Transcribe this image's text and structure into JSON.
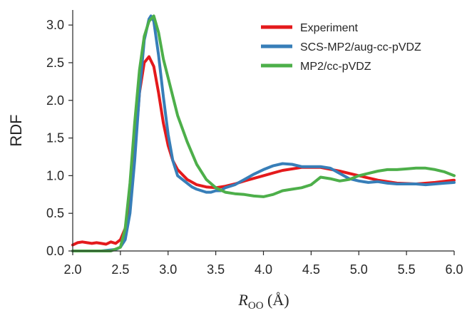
{
  "chart_data": {
    "type": "line",
    "xlabel_main": "R",
    "xlabel_sub": "OO",
    "xlabel_unit": " (Å)",
    "ylabel": "RDF",
    "xlim": [
      2.0,
      6.0
    ],
    "ylim": [
      0.0,
      3.2
    ],
    "xticks": [
      "2.0",
      "2.5",
      "3.0",
      "3.5",
      "4.0",
      "4.5",
      "5.0",
      "5.5",
      "6.0"
    ],
    "yticks": [
      "0.0",
      "0.5",
      "1.0",
      "1.5",
      "2.0",
      "2.5",
      "3.0"
    ],
    "legend_position": "top-right",
    "series": [
      {
        "name": "Experiment",
        "color": "#e41a1c",
        "x": [
          2.0,
          2.05,
          2.1,
          2.15,
          2.2,
          2.25,
          2.3,
          2.35,
          2.4,
          2.45,
          2.5,
          2.55,
          2.6,
          2.65,
          2.7,
          2.75,
          2.8,
          2.85,
          2.9,
          2.95,
          3.0,
          3.05,
          3.1,
          3.2,
          3.3,
          3.4,
          3.5,
          3.6,
          3.7,
          3.8,
          4.0,
          4.2,
          4.4,
          4.6,
          4.8,
          5.0,
          5.2,
          5.4,
          5.6,
          5.8,
          6.0
        ],
        "y": [
          0.08,
          0.11,
          0.12,
          0.11,
          0.1,
          0.11,
          0.1,
          0.09,
          0.12,
          0.1,
          0.15,
          0.3,
          0.7,
          1.3,
          2.1,
          2.5,
          2.58,
          2.45,
          2.1,
          1.7,
          1.4,
          1.2,
          1.08,
          0.95,
          0.88,
          0.85,
          0.84,
          0.86,
          0.89,
          0.93,
          1.0,
          1.07,
          1.11,
          1.11,
          1.06,
          1.0,
          0.94,
          0.9,
          0.89,
          0.91,
          0.94
        ]
      },
      {
        "name": "SCS-MP2/aug-cc-pVDZ",
        "color": "#377eb8",
        "x": [
          2.0,
          2.3,
          2.45,
          2.5,
          2.55,
          2.6,
          2.65,
          2.7,
          2.75,
          2.8,
          2.82,
          2.85,
          2.9,
          2.95,
          3.0,
          3.05,
          3.1,
          3.15,
          3.2,
          3.25,
          3.3,
          3.35,
          3.4,
          3.45,
          3.5,
          3.55,
          3.6,
          3.7,
          3.8,
          3.9,
          4.0,
          4.1,
          4.2,
          4.3,
          4.4,
          4.5,
          4.6,
          4.7,
          4.8,
          4.9,
          5.0,
          5.1,
          5.2,
          5.3,
          5.4,
          5.5,
          5.6,
          5.7,
          5.8,
          5.9,
          6.0
        ],
        "y": [
          0.0,
          0.0,
          0.02,
          0.05,
          0.15,
          0.5,
          1.2,
          2.1,
          2.8,
          3.08,
          3.12,
          3.05,
          2.6,
          2.05,
          1.55,
          1.2,
          1.0,
          0.95,
          0.9,
          0.85,
          0.82,
          0.8,
          0.78,
          0.78,
          0.8,
          0.8,
          0.84,
          0.88,
          0.95,
          1.02,
          1.08,
          1.13,
          1.16,
          1.15,
          1.12,
          1.12,
          1.12,
          1.1,
          1.03,
          0.96,
          0.93,
          0.91,
          0.92,
          0.9,
          0.89,
          0.89,
          0.89,
          0.88,
          0.89,
          0.9,
          0.91
        ]
      },
      {
        "name": "MP2/cc-pVDZ",
        "color": "#4daf4a",
        "x": [
          2.0,
          2.4,
          2.5,
          2.55,
          2.6,
          2.65,
          2.7,
          2.75,
          2.8,
          2.85,
          2.9,
          2.95,
          3.0,
          3.1,
          3.2,
          3.3,
          3.4,
          3.5,
          3.6,
          3.7,
          3.8,
          3.9,
          4.0,
          4.1,
          4.2,
          4.3,
          4.4,
          4.5,
          4.6,
          4.7,
          4.8,
          4.9,
          5.0,
          5.1,
          5.2,
          5.3,
          5.4,
          5.5,
          5.6,
          5.7,
          5.8,
          5.9,
          6.0
        ],
        "y": [
          0.0,
          0.0,
          0.05,
          0.3,
          0.9,
          1.7,
          2.4,
          2.85,
          3.05,
          3.12,
          2.9,
          2.55,
          2.3,
          1.8,
          1.45,
          1.15,
          0.95,
          0.84,
          0.78,
          0.76,
          0.75,
          0.73,
          0.72,
          0.75,
          0.8,
          0.82,
          0.84,
          0.88,
          0.98,
          0.96,
          0.93,
          0.95,
          1.0,
          1.03,
          1.06,
          1.08,
          1.08,
          1.09,
          1.1,
          1.1,
          1.08,
          1.05,
          1.0
        ]
      }
    ]
  }
}
